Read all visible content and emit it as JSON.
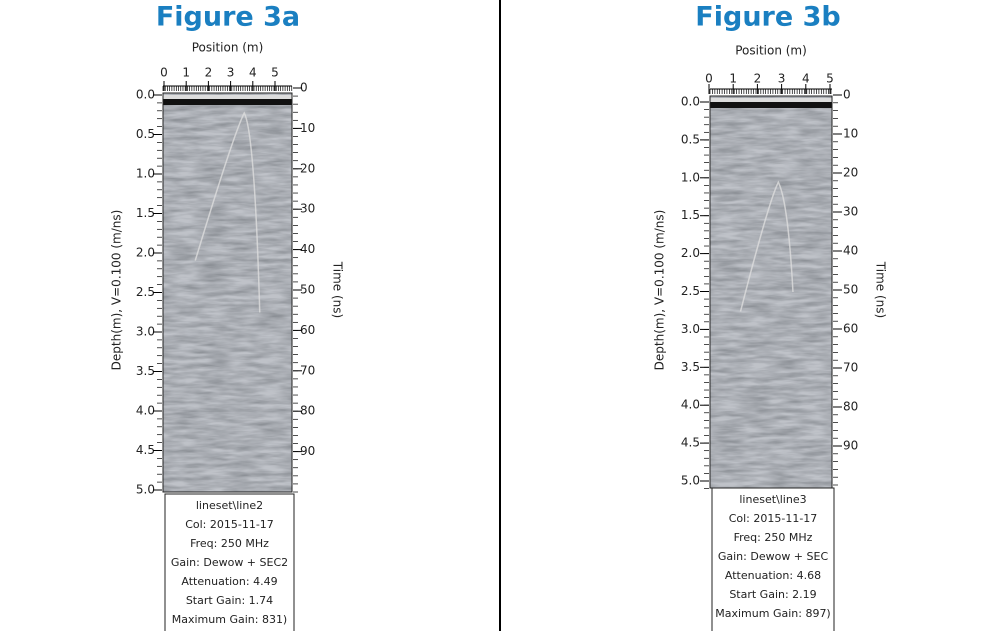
{
  "panels": [
    {
      "title": "Figure 3a",
      "x_label": "Position (m)",
      "x_ticks": [
        "0",
        "1",
        "2",
        "3",
        "4",
        "5"
      ],
      "depth_label": "Depth(m), V=0.100 (m/ns)",
      "depth_ticks": [
        "0.0",
        "0.5",
        "1.0",
        "1.5",
        "2.0",
        "2.5",
        "3.0",
        "3.5",
        "4.0",
        "4.5",
        "5.0"
      ],
      "time_label": "Time (ns)",
      "time_ticks": [
        "0",
        "10",
        "20",
        "30",
        "40",
        "50",
        "60",
        "70",
        "80",
        "90"
      ],
      "info": [
        "lineset\\line2",
        "Col: 2015-11-17",
        "Freq: 250 MHz",
        "Gain: Dewow + SEC2",
        "Attenuation: 4.49",
        "Start Gain: 1.74",
        "Maximum Gain: 831)"
      ]
    },
    {
      "title": "Figure 3b",
      "x_label": "Position (m)",
      "x_ticks": [
        "0",
        "1",
        "2",
        "3",
        "4",
        "5"
      ],
      "depth_label": "Depth(m), V=0.100 (m/ns)",
      "depth_ticks": [
        "0.0",
        "0.5",
        "1.0",
        "1.5",
        "2.0",
        "2.5",
        "3.0",
        "3.5",
        "4.0",
        "4.5",
        "5.0"
      ],
      "time_label": "Time (ns)",
      "time_ticks": [
        "0",
        "10",
        "20",
        "30",
        "40",
        "50",
        "60",
        "70",
        "80",
        "90"
      ],
      "info": [
        "lineset\\line3",
        "Col: 2015-11-17",
        "Freq: 250 MHz",
        "Gain: Dewow + SEC",
        "Attenuation: 4.68",
        "Start Gain: 2.19",
        "Maximum Gain: 897)"
      ]
    }
  ]
}
